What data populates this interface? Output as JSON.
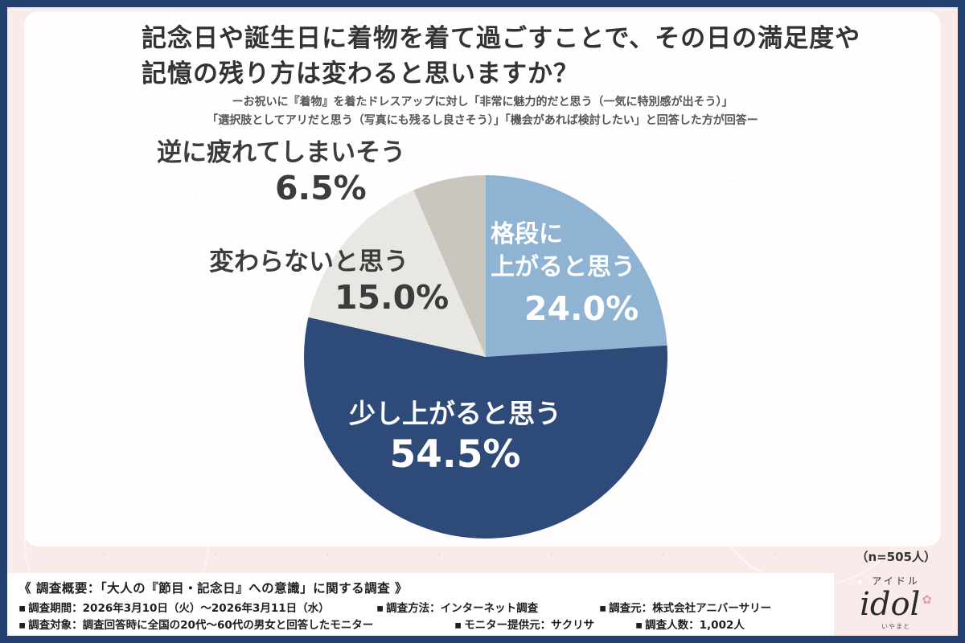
{
  "colors": {
    "border_navy": "#24406e",
    "background_pink": "#f8ebe9",
    "slice_light_blue": "#8fb3d3",
    "slice_navy": "#2e4a78",
    "slice_light_gray": "#e9e7e2",
    "slice_gray": "#c9c5bf",
    "logo_flower_pink": "#e79ab0"
  },
  "header": {
    "title_line1": "記念日や誕生日に着物を着て過ごすことで、その日の満足度や",
    "title_line2": "記憶の残り方は変わると思いますか？",
    "subtitle_line1": "ーお祝いに『着物』を着たドレスアップに対し「非常に魅力的だと思う（一気に特別感が出そう）」",
    "subtitle_line2": "「選択肢としてアリだと思う（写真にも残るし良さそう）」「機会があれば検討したい」と回答した方が回答ー"
  },
  "chart_data": {
    "type": "pie",
    "title": "記念日や誕生日に着物を着て過ごすことで、その日の満足度や記憶の残り方は変わると思いますか？",
    "sample_note": "（n=505人）",
    "start_angle_deg": -90,
    "direction": "clockwise",
    "legend_position": "labels-on-and-around-slices",
    "segments": [
      {
        "label": "格段に上がると思う",
        "label_lines": [
          "格段に",
          "上がると思う"
        ],
        "value": 24.0,
        "pct_text": "24.0%",
        "color": "#8fb3d3"
      },
      {
        "label": "少し上がると思う",
        "value": 54.5,
        "pct_text": "54.5%",
        "color": "#2e4a78"
      },
      {
        "label": "変わらないと思う",
        "value": 15.0,
        "pct_text": "15.0%",
        "color": "#e9e7e2"
      },
      {
        "label": "逆に疲れてしまいそう",
        "value": 6.5,
        "pct_text": "6.5%",
        "color": "#c9c5bf"
      }
    ]
  },
  "footer": {
    "bullet": "▪",
    "heading": "《 調査概要：「大人の『節目・記念日』への意識」に関する調査 》",
    "items": [
      "調査期間：2026年3月10日（火）〜2026年3月11日（水）",
      "調査方法：インターネット調査",
      "調査元：株式会社アニバーサリー",
      "調査対象：調査回答時に全国の20代〜60代の男女と回答したモニター",
      "モニター提供元：サクリサ",
      "調査人数：1,002人"
    ]
  },
  "logo": {
    "kana": "アイドル",
    "name": "idol",
    "sub": "いやまと",
    "flower_glyph": "✿"
  }
}
